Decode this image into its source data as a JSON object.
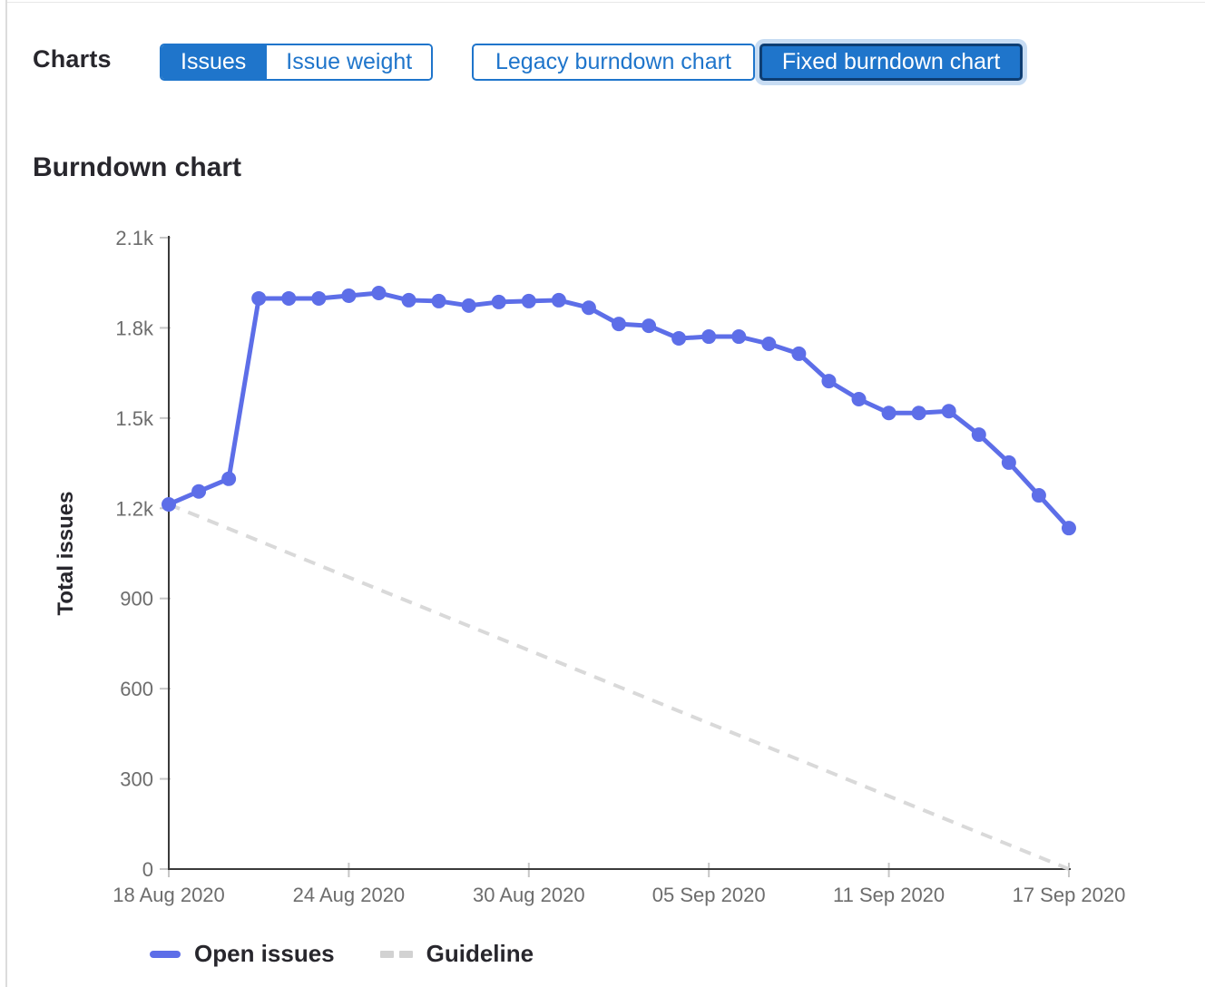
{
  "page": {
    "charts_label": "Charts",
    "heading": "Burndown chart"
  },
  "toggles": {
    "metric_options": [
      {
        "label": "Issues",
        "selected": true
      },
      {
        "label": "Issue weight",
        "selected": false
      }
    ],
    "chart_type_options": [
      {
        "label": "Legacy burndown chart",
        "selected": false
      },
      {
        "label": "Fixed burndown chart",
        "selected": true
      }
    ]
  },
  "colors": {
    "accent_blue": "#1f75cb",
    "selected_border": "#0e3e73",
    "focus_ring": "#c7dcf3",
    "line_blue": "#5d6ee8",
    "guideline_gray": "#d9d9d9",
    "axis": "#3a3a3a",
    "tick_mark": "#c6c6c6",
    "tick_text": "#6d6d6d",
    "heading_text": "#28272d"
  },
  "chart_data": {
    "type": "line",
    "title": "Burndown chart",
    "xlabel": "",
    "ylabel": "Total issues",
    "ylim": [
      0,
      2100
    ],
    "grid": false,
    "legend_position": "bottom",
    "x": [
      "2020-08-18",
      "2020-08-19",
      "2020-08-20",
      "2020-08-21",
      "2020-08-22",
      "2020-08-23",
      "2020-08-24",
      "2020-08-25",
      "2020-08-26",
      "2020-08-27",
      "2020-08-28",
      "2020-08-29",
      "2020-08-30",
      "2020-08-31",
      "2020-09-01",
      "2020-09-02",
      "2020-09-03",
      "2020-09-04",
      "2020-09-05",
      "2020-09-06",
      "2020-09-07",
      "2020-09-08",
      "2020-09-09",
      "2020-09-10",
      "2020-09-11",
      "2020-09-12",
      "2020-09-13",
      "2020-09-14",
      "2020-09-15",
      "2020-09-16",
      "2020-09-17"
    ],
    "series": [
      {
        "name": "Open issues",
        "style": "solid",
        "color": "#5d6ee8",
        "values": [
          1213,
          1256,
          1298,
          1898,
          1898,
          1898,
          1907,
          1916,
          1892,
          1889,
          1874,
          1886,
          1889,
          1892,
          1867,
          1813,
          1807,
          1765,
          1771,
          1771,
          1747,
          1714,
          1623,
          1563,
          1517,
          1517,
          1523,
          1445,
          1352,
          1243,
          1134
        ]
      },
      {
        "name": "Guideline",
        "style": "dashed",
        "color": "#d9d9d9",
        "start_value": 1213,
        "end_value": 0
      }
    ],
    "y_ticks": [
      {
        "value": 2100,
        "label": "2.1k"
      },
      {
        "value": 1800,
        "label": "1.8k"
      },
      {
        "value": 1500,
        "label": "1.5k"
      },
      {
        "value": 1200,
        "label": "1.2k"
      },
      {
        "value": 900,
        "label": "900"
      },
      {
        "value": 600,
        "label": "600"
      },
      {
        "value": 300,
        "label": "300"
      },
      {
        "value": 0,
        "label": "0"
      }
    ],
    "x_ticks": [
      {
        "day": 0,
        "label": "18 Aug 2020"
      },
      {
        "day": 6,
        "label": "24 Aug 2020"
      },
      {
        "day": 12,
        "label": "30 Aug 2020"
      },
      {
        "day": 18,
        "label": "05 Sep 2020"
      },
      {
        "day": 24,
        "label": "11 Sep 2020"
      },
      {
        "day": 30,
        "label": "17 Sep 2020"
      }
    ]
  }
}
